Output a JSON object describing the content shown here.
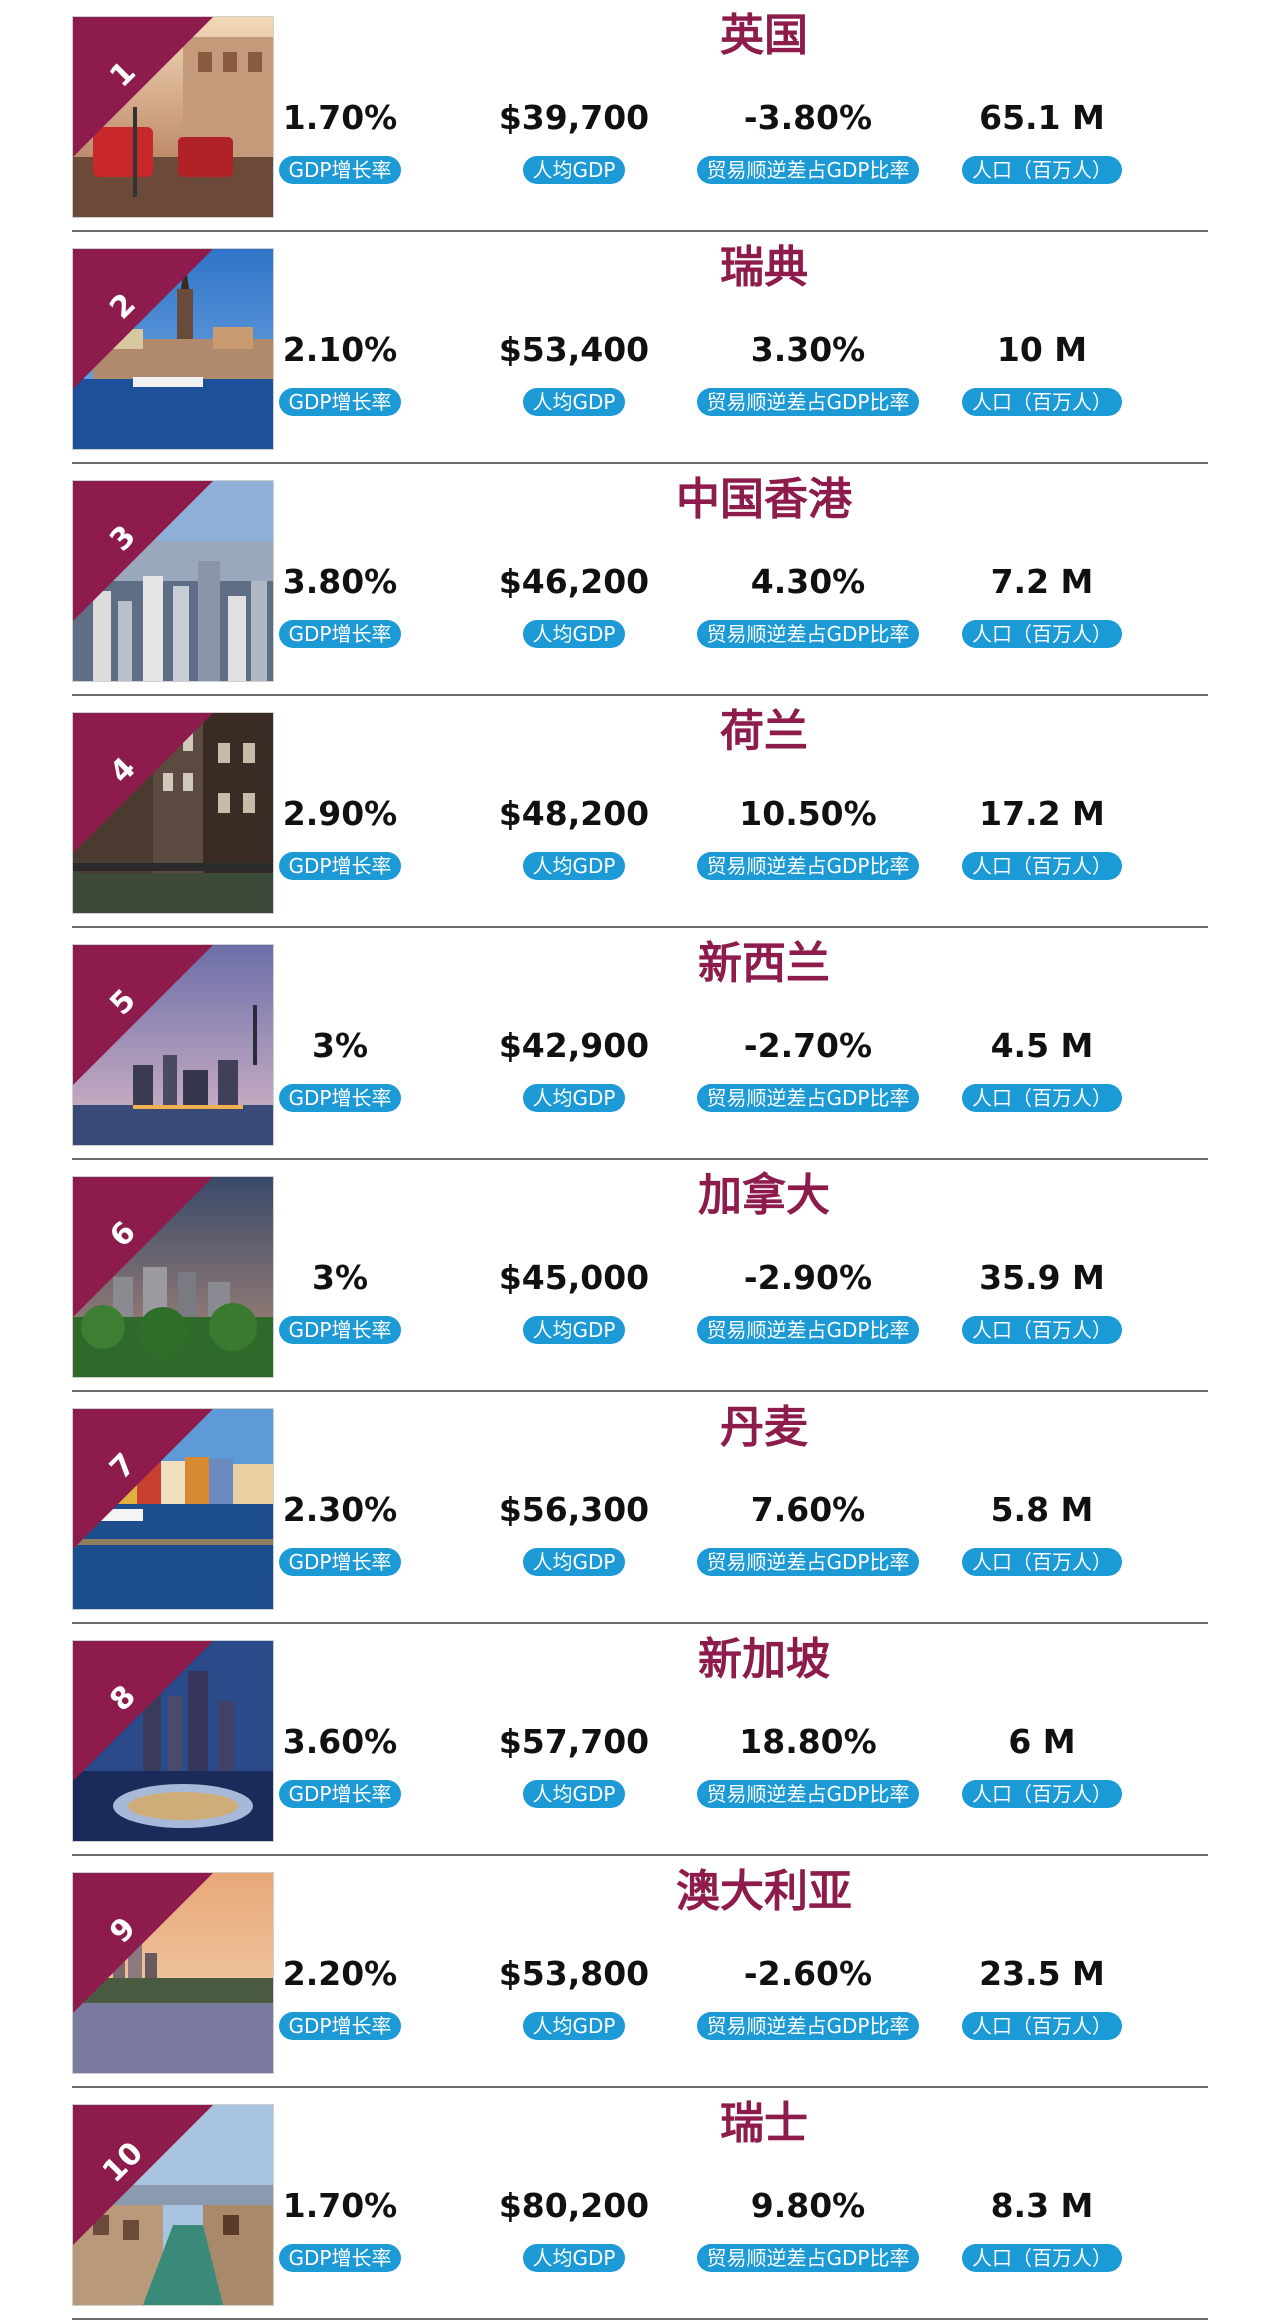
{
  "labels": {
    "gdp_growth": "GDP增长率",
    "gdp_per_capita": "人均GDP",
    "trade_balance": "贸易顺逆差占GDP比率",
    "population": "人口（百万人）"
  },
  "colors": {
    "accent": "#8d1c4d",
    "badge": "#1c9ad6",
    "divider": "#6a6a6a"
  },
  "countries": [
    {
      "rank": "1",
      "name": "英国",
      "gdp_growth": "1.70%",
      "gdp_per_capita": "$39,700",
      "trade_balance": "-3.80%",
      "population": "65.1 M",
      "scene": "street"
    },
    {
      "rank": "2",
      "name": "瑞典",
      "gdp_growth": "2.10%",
      "gdp_per_capita": "$53,400",
      "trade_balance": "3.30%",
      "population": "10 M",
      "scene": "harbor"
    },
    {
      "rank": "3",
      "name": "中国香港",
      "gdp_growth": "3.80%",
      "gdp_per_capita": "$46,200",
      "trade_balance": "4.30%",
      "population": "7.2 M",
      "scene": "skyline-day"
    },
    {
      "rank": "4",
      "name": "荷兰",
      "gdp_growth": "2.90%",
      "gdp_per_capita": "$48,200",
      "trade_balance": "10.50%",
      "population": "17.2 M",
      "scene": "canal-houses"
    },
    {
      "rank": "5",
      "name": "新西兰",
      "gdp_growth": "3%",
      "gdp_per_capita": "$42,900",
      "trade_balance": "-2.70%",
      "population": "4.5 M",
      "scene": "skyline-dusk"
    },
    {
      "rank": "6",
      "name": "加拿大",
      "gdp_growth": "3%",
      "gdp_per_capita": "$45,000",
      "trade_balance": "-2.90%",
      "population": "35.9 M",
      "scene": "city-forest"
    },
    {
      "rank": "7",
      "name": "丹麦",
      "gdp_growth": "2.30%",
      "gdp_per_capita": "$56,300",
      "trade_balance": "7.60%",
      "population": "5.8 M",
      "scene": "colorful-harbor"
    },
    {
      "rank": "8",
      "name": "新加坡",
      "gdp_growth": "3.60%",
      "gdp_per_capita": "$57,700",
      "trade_balance": "18.80%",
      "population": "6 M",
      "scene": "night-bay"
    },
    {
      "rank": "9",
      "name": "澳大利亚",
      "gdp_growth": "2.20%",
      "gdp_per_capita": "$53,800",
      "trade_balance": "-2.60%",
      "population": "23.5 M",
      "scene": "sunset-harbor"
    },
    {
      "rank": "10",
      "name": "瑞士",
      "gdp_growth": "1.70%",
      "gdp_per_capita": "$80,200",
      "trade_balance": "9.80%",
      "population": "8.3 M",
      "scene": "river-town"
    }
  ]
}
